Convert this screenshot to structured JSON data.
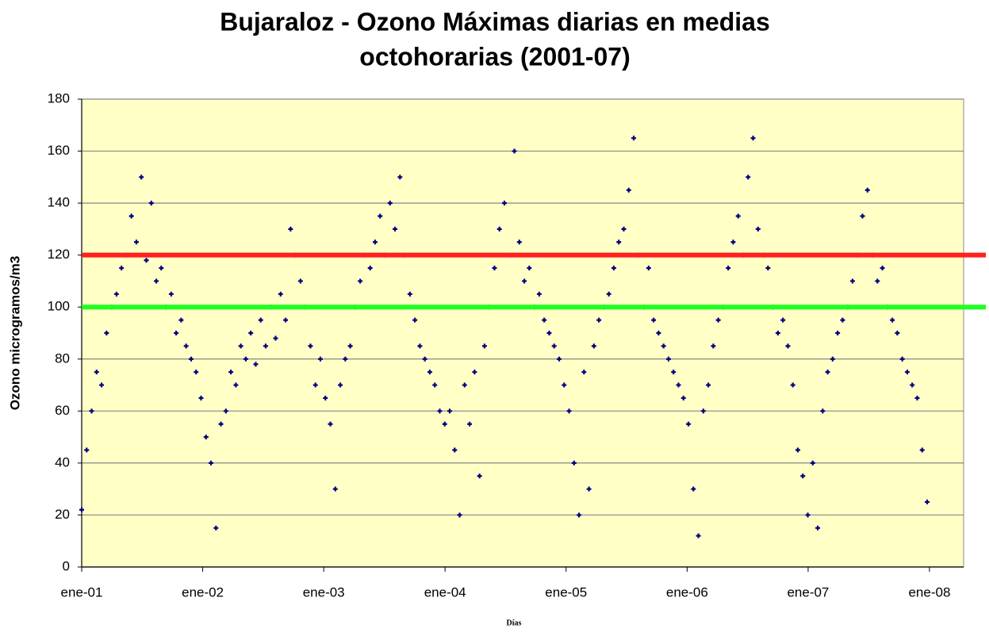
{
  "chart_data": {
    "type": "scatter",
    "title": [
      "Bujaraloz - Ozono Máximas diarias en medias",
      "octohorarias (2001-07)"
    ],
    "ylabel": "Ozono microgramos/m3",
    "xlabel": "Días",
    "xlim": [
      0,
      2660
    ],
    "ylim": [
      0,
      180
    ],
    "xticks": [
      {
        "value": 0,
        "label": "ene-01"
      },
      {
        "value": 365,
        "label": "ene-02"
      },
      {
        "value": 730,
        "label": "ene-03"
      },
      {
        "value": 1096,
        "label": "ene-04"
      },
      {
        "value": 1461,
        "label": "ene-05"
      },
      {
        "value": 1826,
        "label": "ene-06"
      },
      {
        "value": 2191,
        "label": "ene-07"
      },
      {
        "value": 2557,
        "label": "ene-08"
      }
    ],
    "yticks": [
      0,
      20,
      40,
      60,
      80,
      100,
      120,
      140,
      160,
      180
    ],
    "grid": true,
    "hlines": [
      {
        "value": 120,
        "color": "#ff2020"
      },
      {
        "value": 100,
        "color": "#20ff20"
      }
    ],
    "series": [
      {
        "color": "#000080",
        "x": [
          0,
          15,
          30,
          45,
          60,
          75,
          90,
          105,
          120,
          135,
          150,
          165,
          180,
          195,
          210,
          225,
          240,
          255,
          270,
          285,
          300,
          315,
          330,
          345,
          360,
          375,
          390,
          405,
          420,
          435,
          450,
          465,
          480,
          495,
          510,
          525,
          540,
          555,
          570,
          585,
          600,
          615,
          630,
          645,
          660,
          675,
          690,
          705,
          720,
          735,
          750,
          765,
          780,
          795,
          810,
          825,
          840,
          855,
          870,
          885,
          900,
          915,
          930,
          945,
          960,
          975,
          990,
          1005,
          1020,
          1035,
          1050,
          1065,
          1080,
          1095,
          1110,
          1125,
          1140,
          1155,
          1170,
          1185,
          1200,
          1215,
          1230,
          1245,
          1260,
          1275,
          1290,
          1305,
          1320,
          1335,
          1350,
          1365,
          1380,
          1395,
          1410,
          1425,
          1440,
          1455,
          1470,
          1485,
          1500,
          1515,
          1530,
          1545,
          1560,
          1575,
          1590,
          1605,
          1620,
          1635,
          1650,
          1665,
          1680,
          1695,
          1710,
          1725,
          1740,
          1755,
          1770,
          1785,
          1800,
          1815,
          1830,
          1845,
          1860,
          1875,
          1890,
          1905,
          1920,
          1935,
          1950,
          1965,
          1980,
          1995,
          2010,
          2025,
          2040,
          2055,
          2070,
          2085,
          2100,
          2115,
          2130,
          2145,
          2160,
          2175,
          2190,
          2205,
          2220,
          2235,
          2250,
          2265,
          2280,
          2295,
          2310,
          2325,
          2340,
          2355,
          2370,
          2385,
          2400,
          2415,
          2430,
          2445,
          2460,
          2475,
          2490,
          2505,
          2520,
          2535,
          2550
        ],
        "values": [
          22,
          45,
          60,
          75,
          70,
          90,
          100,
          105,
          115,
          120,
          135,
          125,
          150,
          118,
          140,
          110,
          115,
          100,
          105,
          90,
          95,
          85,
          80,
          75,
          65,
          50,
          40,
          15,
          55,
          60,
          75,
          70,
          85,
          80,
          90,
          78,
          95,
          85,
          100,
          88,
          105,
          95,
          130,
          120,
          110,
          100,
          85,
          70,
          80,
          65,
          55,
          30,
          70,
          80,
          85,
          100,
          110,
          120,
          115,
          125,
          135,
          120,
          140,
          130,
          150,
          120,
          105,
          95,
          85,
          80,
          75,
          70,
          60,
          55,
          60,
          45,
          20,
          70,
          55,
          75,
          35,
          85,
          100,
          115,
          130,
          140,
          120,
          160,
          125,
          110,
          115,
          100,
          105,
          95,
          90,
          85,
          80,
          70,
          60,
          40,
          20,
          75,
          30,
          85,
          95,
          100,
          105,
          115,
          125,
          130,
          145,
          165,
          120,
          100,
          115,
          95,
          90,
          85,
          80,
          75,
          70,
          65,
          55,
          30,
          12,
          60,
          70,
          85,
          95,
          100,
          115,
          125,
          135,
          120,
          150,
          165,
          130,
          120,
          115,
          100,
          90,
          95,
          85,
          70,
          45,
          35,
          20,
          40,
          15,
          60,
          75,
          80,
          90,
          95,
          100,
          110,
          120,
          135,
          145,
          120,
          110,
          115,
          100,
          95,
          90,
          80,
          75,
          70,
          65,
          45,
          25
        ]
      }
    ]
  }
}
